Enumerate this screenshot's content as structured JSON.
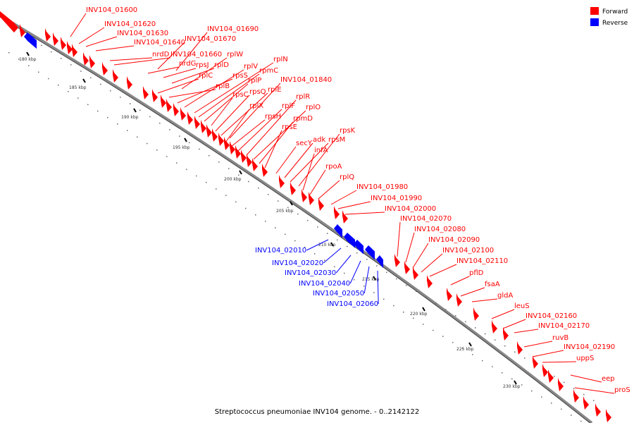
{
  "caption": "Streptococcus pneumoniae INV104 genome. - 0..2142122",
  "legend": [
    {
      "label": "Forward",
      "color": "#ff0000"
    },
    {
      "label": "Reverse",
      "color": "#0000ff"
    }
  ],
  "colors": {
    "forward": "#ff0000",
    "reverse": "#0000ff",
    "backbone": "#888888",
    "tick": "#000000"
  },
  "ticks": [
    "180 kbp",
    "185 kbp",
    "190 kbp",
    "195 kbp",
    "200 kbp",
    "205 kbp",
    "210 kbp",
    "215 kbp",
    "220 kbp",
    "225 kbp",
    "230 kbp"
  ],
  "forward_labels": [
    "INV104_01600",
    "INV104_01620",
    "INV104_01630",
    "INV104_01640",
    "nrdD",
    "INV104_01660",
    "INV104_01690",
    "INV104_01670",
    "nrdG",
    "rpsJ",
    "rplD",
    "rplW",
    "rplC",
    "rplB",
    "rpsS",
    "rplV",
    "rplN",
    "rpmC",
    "rplP",
    "rpsC",
    "rpsQ",
    "rplE",
    "INV104_01840",
    "rplX",
    "rpsH",
    "rplF",
    "rplR",
    "rplO",
    "rpmD",
    "rpsE",
    "secY",
    "adk",
    "rpsM",
    "rpsK",
    "infA",
    "rpoA",
    "rplQ",
    "INV104_01980",
    "INV104_01990",
    "INV104_02000",
    "INV104_02070",
    "INV104_02080",
    "INV104_02090",
    "INV104_02100",
    "INV104_02110",
    "pflD",
    "fsaA",
    "gldA",
    "leuS",
    "INV104_02160",
    "INV104_02170",
    "ruvB",
    "INV104_02190",
    "uppS",
    "eep",
    "proS"
  ],
  "reverse_labels": [
    "INV104_02010",
    "INV104_02020",
    "INV104_02030",
    "INV104_02040",
    "INV104_02050",
    "INV104_02060"
  ]
}
